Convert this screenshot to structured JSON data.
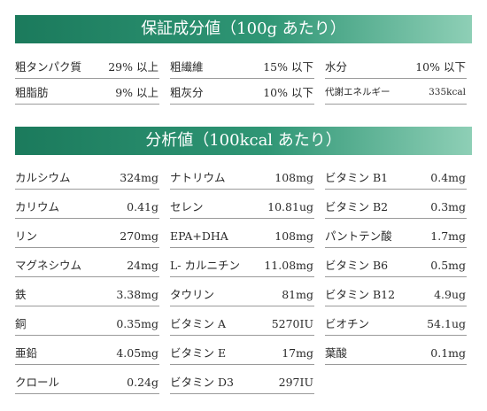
{
  "guaranteed": {
    "title": "保証成分値（100g あたり）",
    "rows": [
      [
        {
          "label": "粗タンパク質",
          "value": "29% 以上"
        },
        {
          "label": "粗繊維",
          "value": "15% 以下"
        },
        {
          "label": "水分",
          "value": "10% 以下"
        }
      ],
      [
        {
          "label": "粗脂肪",
          "value": "9% 以上"
        },
        {
          "label": "粗灰分",
          "value": "10% 以下"
        },
        {
          "label": "代謝エネルギー",
          "value": "335kcal"
        }
      ]
    ]
  },
  "analysis": {
    "title": "分析値（100kcal あたり）",
    "rows": [
      [
        {
          "label": "カルシウム",
          "value": "324mg"
        },
        {
          "label": "ナトリウム",
          "value": "108mg"
        },
        {
          "label": "ビタミン B1",
          "value": "0.4mg"
        }
      ],
      [
        {
          "label": "カリウム",
          "value": "0.41g"
        },
        {
          "label": "セレン",
          "value": "10.81ug"
        },
        {
          "label": "ビタミン B2",
          "value": "0.3mg"
        }
      ],
      [
        {
          "label": "リン",
          "value": "270mg"
        },
        {
          "label": "EPA+DHA",
          "value": "108mg"
        },
        {
          "label": "パントテン酸",
          "value": "1.7mg"
        }
      ],
      [
        {
          "label": "マグネシウム",
          "value": "24mg"
        },
        {
          "label": "L- カルニチン",
          "value": "11.08mg"
        },
        {
          "label": "ビタミン B6",
          "value": "0.5mg"
        }
      ],
      [
        {
          "label": "鉄",
          "value": "3.38mg"
        },
        {
          "label": "タウリン",
          "value": "81mg"
        },
        {
          "label": "ビタミン B12",
          "value": "4.9ug"
        }
      ],
      [
        {
          "label": "銅",
          "value": "0.35mg"
        },
        {
          "label": "ビタミン A",
          "value": "5270IU"
        },
        {
          "label": "ビオチン",
          "value": "54.1ug"
        }
      ],
      [
        {
          "label": "亜鉛",
          "value": "4.05mg"
        },
        {
          "label": "ビタミン E",
          "value": "17mg"
        },
        {
          "label": "葉酸",
          "value": "0.1mg"
        }
      ],
      [
        {
          "label": "クロール",
          "value": "0.24g"
        },
        {
          "label": "ビタミン D3",
          "value": "297IU"
        }
      ]
    ]
  }
}
